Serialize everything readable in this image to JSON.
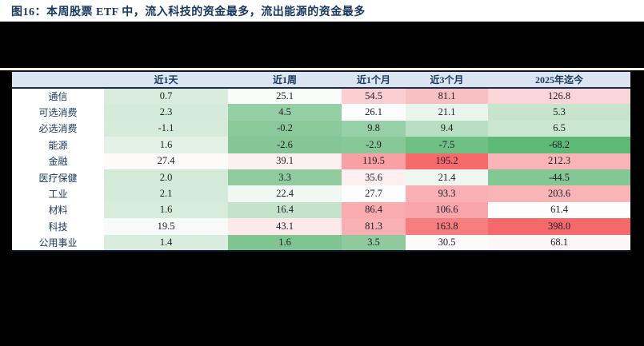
{
  "title": "图16：本周股票 ETF 中，流入科技的资金最多，流出能源的资金最多",
  "colors": {
    "page_background": "#000000",
    "title_band_background": "#ffffff",
    "title_text": "#17375d",
    "header_background": "#dbe5f1",
    "header_text": "#17375d",
    "divider_line": "#f8f1d8",
    "table_border": "#0e1a2b",
    "heat_red_max": "#f5696b",
    "heat_green_max": "#5cba76"
  },
  "chart_data": {
    "type": "heatmap",
    "title": "图16：本周股票 ETF 中，流入科技的资金最多，流出能源的资金最多",
    "columns": [
      "近1天",
      "近1周",
      "近1个月",
      "近3个月",
      "2025年迄今"
    ],
    "row_label_header": "",
    "rows": [
      {
        "label": "通信",
        "values": [
          "0.7",
          "25.1",
          "54.5",
          "81.1",
          "126.8"
        ],
        "cell_colors": [
          "#d9ecdc",
          "#fafcfa",
          "#fbced1",
          "#f9c0c3",
          "#fbd6d8"
        ]
      },
      {
        "label": "可选消费",
        "values": [
          "2.3",
          "4.5",
          "26.1",
          "21.1",
          "5.3"
        ],
        "cell_colors": [
          "#d5ebd9",
          "#96cfa5",
          "#fdfdfd",
          "#e9f5ec",
          "#c6e5cc"
        ]
      },
      {
        "label": "必选消费",
        "values": [
          "-1.1",
          "-0.2",
          "9.8",
          "9.4",
          "6.5"
        ],
        "cell_colors": [
          "#d6ebda",
          "#8bc99b",
          "#97d0a6",
          "#b9dfc2",
          "#cae7d0"
        ]
      },
      {
        "label": "能源",
        "values": [
          "1.6",
          "-2.6",
          "-2.9",
          "-7.5",
          "-68.2"
        ],
        "cell_colors": [
          "#e3f1e6",
          "#85c596",
          "#87c798",
          "#70bf85",
          "#5cba76"
        ]
      },
      {
        "label": "金融",
        "values": [
          "27.4",
          "39.1",
          "119.5",
          "195.2",
          "212.3"
        ],
        "cell_colors": [
          "#fdfafa",
          "#fdf0f0",
          "#f8a0a3",
          "#f56b6d",
          "#f9b4b8"
        ]
      },
      {
        "label": "医疗保健",
        "values": [
          "2.0",
          "3.3",
          "35.6",
          "21.4",
          "-44.5"
        ],
        "cell_colors": [
          "#d4ead8",
          "#8fcb9e",
          "#fdeef0",
          "#edf7ef",
          "#82c794"
        ]
      },
      {
        "label": "工业",
        "values": [
          "2.1",
          "22.4",
          "27.7",
          "93.3",
          "203.6"
        ],
        "cell_colors": [
          "#d5ebd9",
          "#eff8f1",
          "#fdfdfd",
          "#f8b0b4",
          "#f9b4b8"
        ]
      },
      {
        "label": "材料",
        "values": [
          "1.6",
          "16.4",
          "86.4",
          "106.6",
          "61.4"
        ],
        "cell_colors": [
          "#d8ecdb",
          "#c3e4ca",
          "#f9abae",
          "#f8a6a9",
          "#fdfdfe"
        ]
      },
      {
        "label": "科技",
        "values": [
          "19.5",
          "43.1",
          "81.3",
          "163.8",
          "398.0"
        ],
        "cell_colors": [
          "#f7faf8",
          "#fce9ea",
          "#f9b0b5",
          "#f77d7f",
          "#f5696b"
        ]
      },
      {
        "label": "公用事业",
        "values": [
          "1.4",
          "1.6",
          "3.5",
          "30.5",
          "68.1"
        ],
        "cell_colors": [
          "#daecdd",
          "#80c492",
          "#8fca9e",
          "#fcfafa",
          "#fdf6f6"
        ]
      }
    ]
  }
}
